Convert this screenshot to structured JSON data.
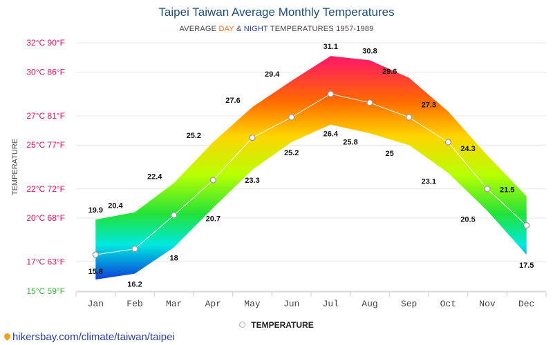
{
  "chart_data": {
    "type": "area",
    "title": "Taipei Taiwan Average Monthly Temperatures",
    "subtitle": {
      "prefix": "AVERAGE ",
      "day": "DAY",
      "amp": " & ",
      "night": "NIGHT",
      "suffix": " TEMPERATURES 1957-1989"
    },
    "ylabel": "TEMPERATURE",
    "categories": [
      "Jan",
      "Feb",
      "Mar",
      "Apr",
      "May",
      "Jun",
      "Jul",
      "Aug",
      "Sep",
      "Oct",
      "Nov",
      "Dec"
    ],
    "ylim": [
      15,
      32
    ],
    "y_ticks": [
      {
        "value": 15,
        "label": "15°C 59°F",
        "color": "#3cb43c"
      },
      {
        "value": 17,
        "label": "17°C 63°F",
        "color": "#e0105a"
      },
      {
        "value": 20,
        "label": "20°C 68°F",
        "color": "#e0105a"
      },
      {
        "value": 22,
        "label": "22°C 72°F",
        "color": "#e0105a"
      },
      {
        "value": 25,
        "label": "25°C 77°F",
        "color": "#e0105a"
      },
      {
        "value": 27,
        "label": "27°C 81°F",
        "color": "#e0105a"
      },
      {
        "value": 30,
        "label": "30°C 86°F",
        "color": "#e0105a"
      },
      {
        "value": 32,
        "label": "32°C 90°F",
        "color": "#e0105a"
      }
    ],
    "series": [
      {
        "name": "DAY",
        "values": [
          19.9,
          20.4,
          22.4,
          25.2,
          27.6,
          29.4,
          31.1,
          30.8,
          29.6,
          27.3,
          24.3,
          21.5
        ]
      },
      {
        "name": "NIGHT",
        "values": [
          15.8,
          16.2,
          18,
          20.7,
          23.3,
          25.2,
          26.4,
          25.8,
          25,
          23.1,
          20.5,
          17.5
        ]
      },
      {
        "name": "TEMPERATURE",
        "values": [
          17.5,
          17.9,
          20.2,
          22.6,
          25.5,
          26.9,
          28.5,
          27.9,
          26.9,
          25.2,
          22,
          19.5
        ]
      }
    ],
    "high_labels": [
      "19.9",
      "20.4",
      "22.4",
      "25.2",
      "27.6",
      "29.4",
      "31.1",
      "30.8",
      "29.6",
      "27.3",
      "24.3",
      "21.5"
    ],
    "low_labels": [
      "15.8",
      "16.2",
      "18",
      "20.7",
      "23.3",
      "25.2",
      "26.4",
      "25.8",
      "25",
      "23.1",
      "20.5",
      "17.5"
    ],
    "grid": true,
    "legend": {
      "label": "TEMPERATURE",
      "position": "bottom"
    }
  },
  "source": "hikersbay.com/climate/taiwan/taipei"
}
